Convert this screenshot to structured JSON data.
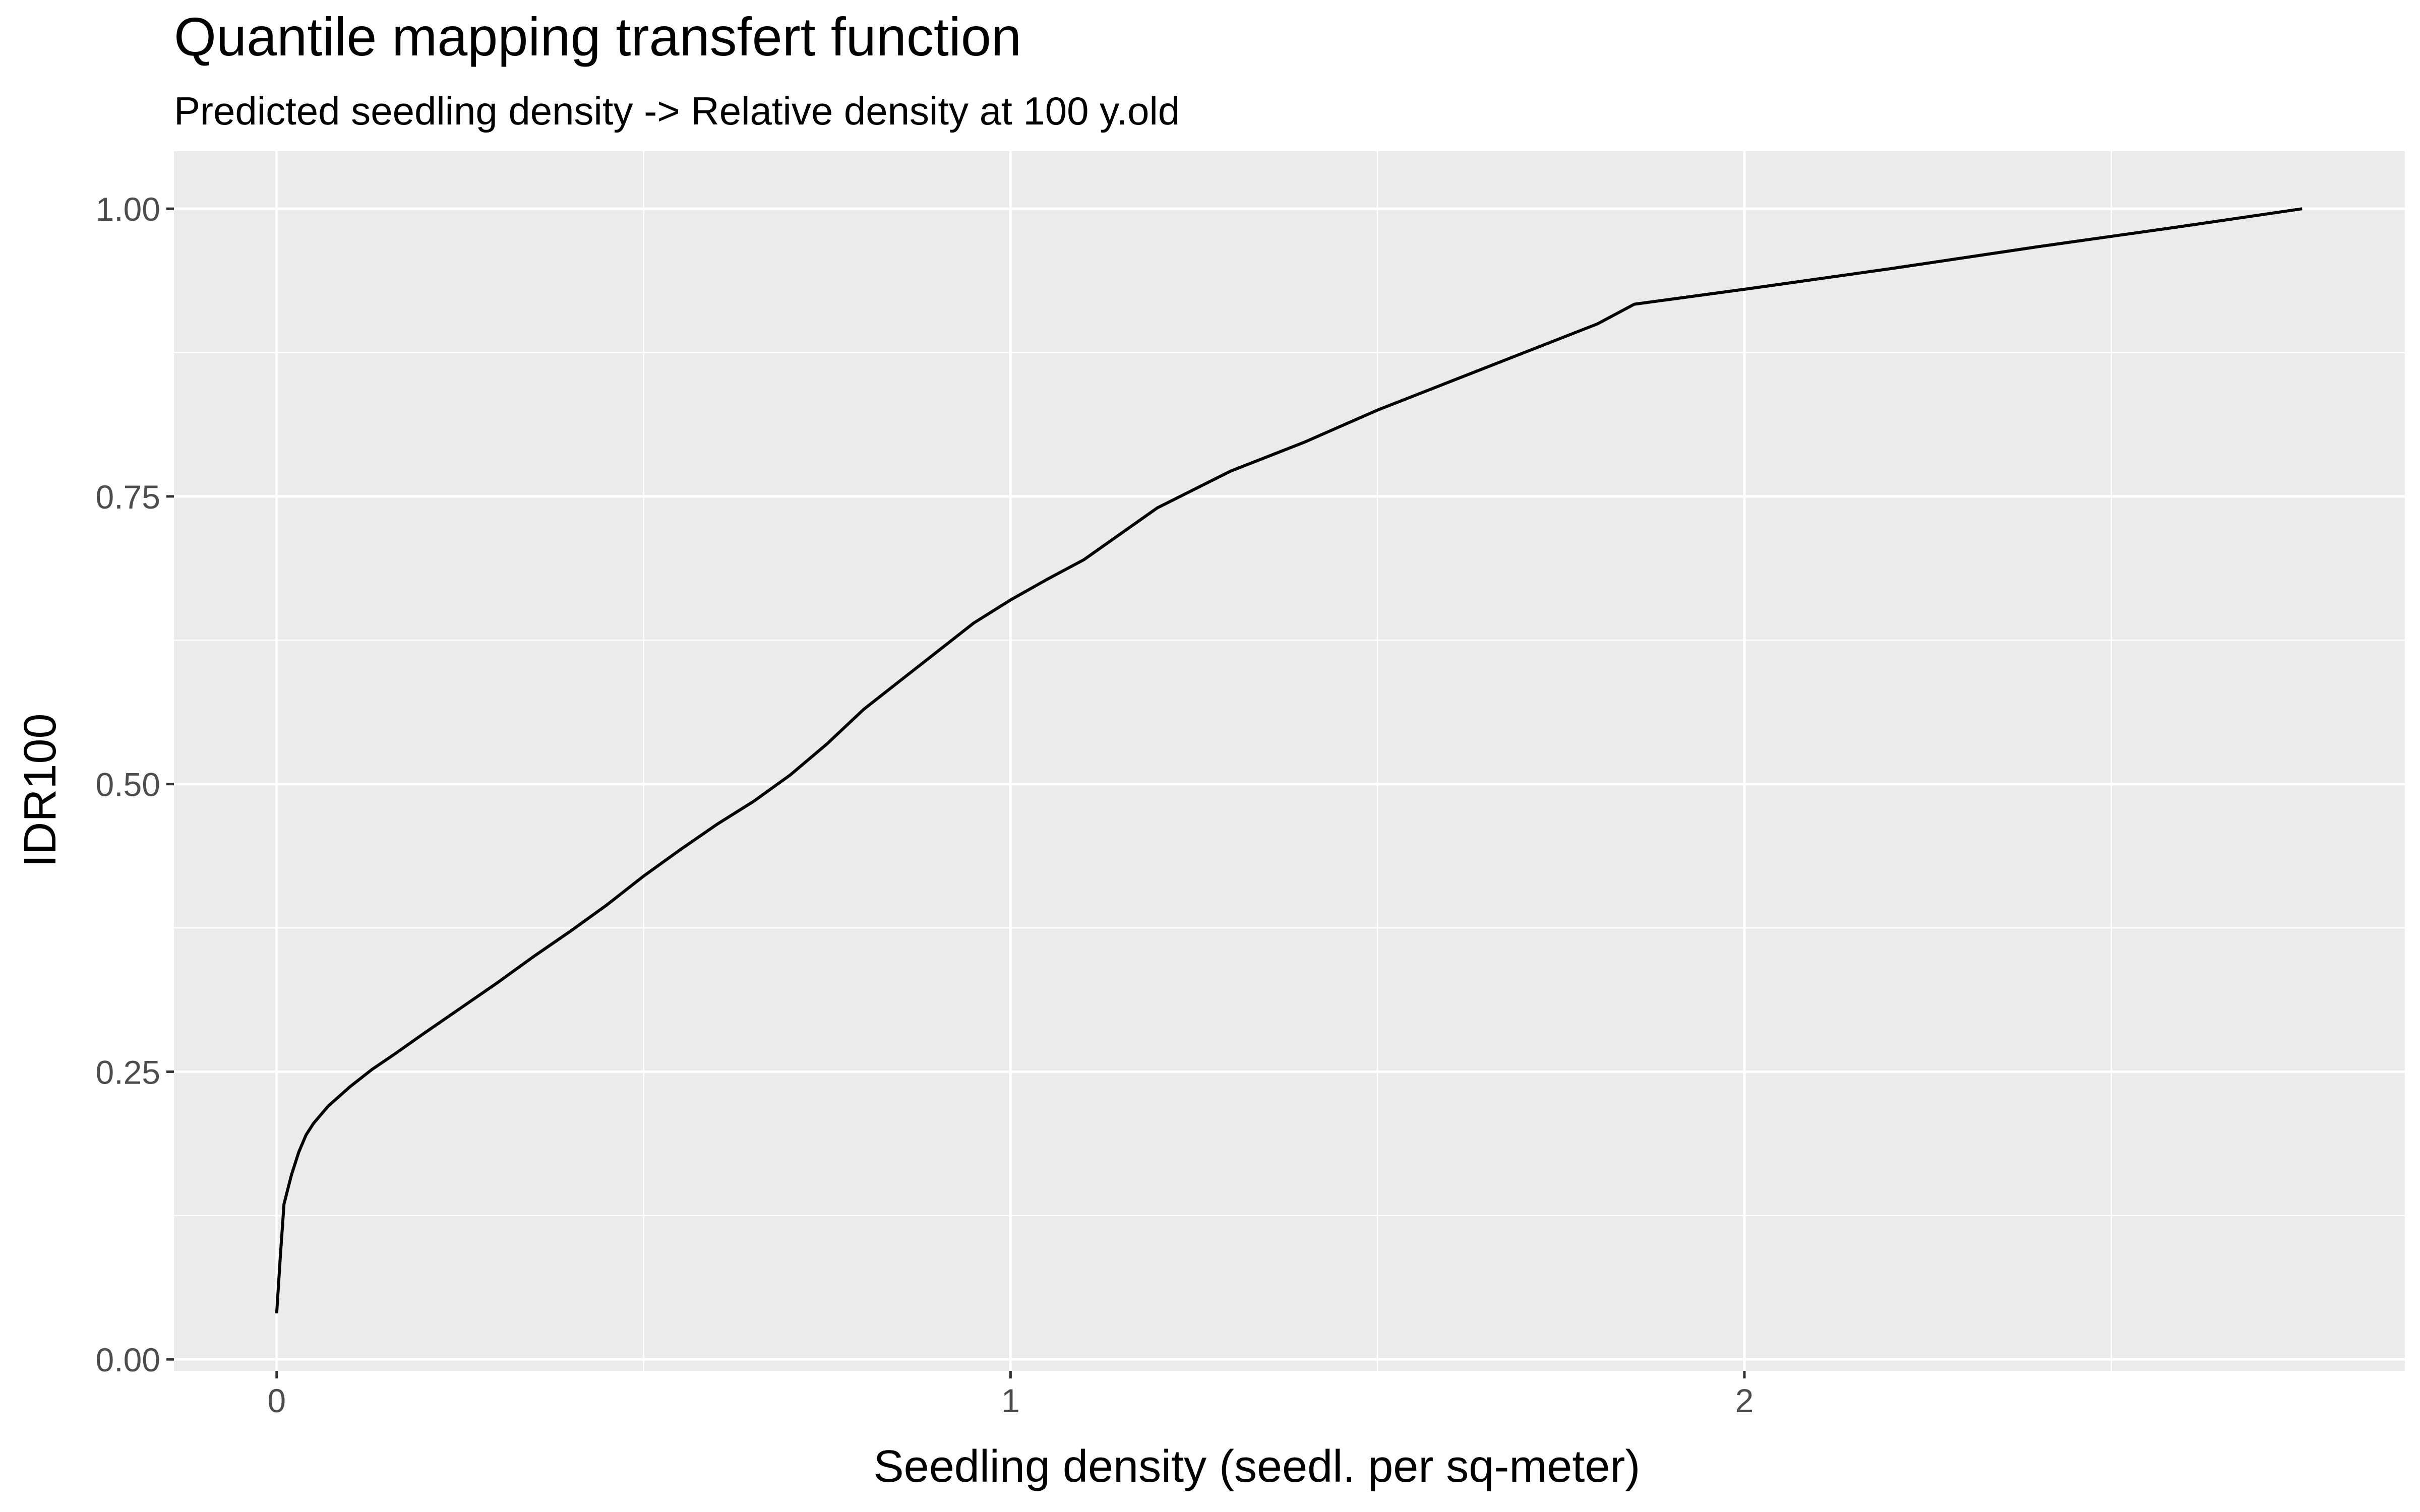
{
  "chart_data": {
    "type": "line",
    "title": "Quantile mapping transfert function",
    "subtitle": "Predicted seedling density -> Relative density at 100 y.old",
    "xlabel": "Seedling density (seedl. per sq-meter)",
    "ylabel": "IDR100",
    "xlim": [
      -0.14,
      2.9
    ],
    "ylim": [
      -0.01,
      1.05
    ],
    "x_ticks": [
      0,
      1,
      2
    ],
    "x_tick_labels": [
      "0",
      "1",
      "2"
    ],
    "y_ticks": [
      0,
      0.25,
      0.5,
      0.75,
      1.0
    ],
    "y_tick_labels": [
      "0.00",
      "0.25",
      "0.50",
      "0.75",
      "1.00"
    ],
    "grid": true,
    "colors": {
      "panel_background": "#ebebeb",
      "grid_major": "#ffffff",
      "line": "#000000"
    },
    "series": [
      {
        "x": [
          0.0,
          0.005,
          0.01,
          0.02,
          0.03,
          0.04,
          0.05,
          0.07,
          0.1,
          0.13,
          0.16,
          0.2,
          0.25,
          0.3,
          0.35,
          0.4,
          0.45,
          0.5,
          0.55,
          0.6,
          0.65,
          0.7,
          0.75,
          0.8,
          0.85,
          0.9,
          0.95,
          1.0,
          1.05,
          1.1,
          1.2,
          1.3,
          1.4,
          1.5,
          1.6,
          1.7,
          1.8,
          1.85,
          2.0,
          2.2,
          2.4,
          2.6,
          2.76
        ],
        "y": [
          0.04,
          0.09,
          0.135,
          0.16,
          0.18,
          0.195,
          0.205,
          0.22,
          0.237,
          0.252,
          0.265,
          0.283,
          0.305,
          0.327,
          0.35,
          0.372,
          0.395,
          0.42,
          0.443,
          0.465,
          0.485,
          0.508,
          0.535,
          0.565,
          0.59,
          0.615,
          0.64,
          0.66,
          0.678,
          0.695,
          0.74,
          0.772,
          0.797,
          0.825,
          0.85,
          0.875,
          0.9,
          0.917,
          0.93,
          0.948,
          0.967,
          0.985,
          1.0
        ]
      }
    ]
  }
}
